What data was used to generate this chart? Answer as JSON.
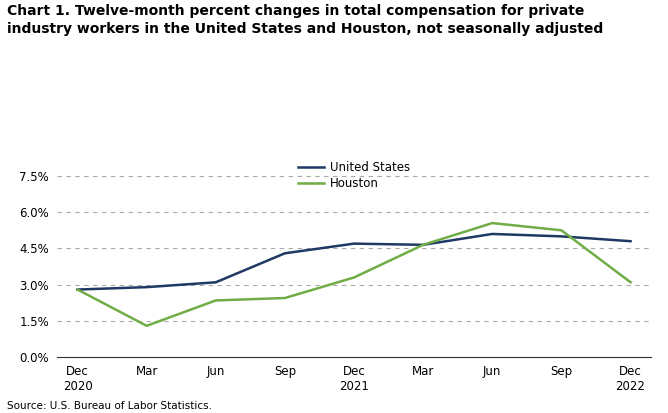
{
  "title_line1": "Chart 1. Twelve-month percent changes in total compensation for private",
  "title_line2": "industry workers in the United States and Houston, not seasonally adjusted",
  "x_labels": [
    "Dec\n2020",
    "Mar",
    "Jun",
    "Sep",
    "Dec\n2021",
    "Mar",
    "Jun",
    "Sep",
    "Dec\n2022"
  ],
  "us_values": [
    2.8,
    2.9,
    3.1,
    4.3,
    4.7,
    4.65,
    5.1,
    5.0,
    4.8
  ],
  "houston_values": [
    2.8,
    1.3,
    2.35,
    2.45,
    3.3,
    4.65,
    5.55,
    5.25,
    3.1
  ],
  "us_color": "#1f3864",
  "houston_color": "#70ad47",
  "us_label": "United States",
  "houston_label": "Houston",
  "source": "Source: U.S. Bureau of Labor Statistics.",
  "background_color": "#ffffff",
  "line_width": 1.8
}
